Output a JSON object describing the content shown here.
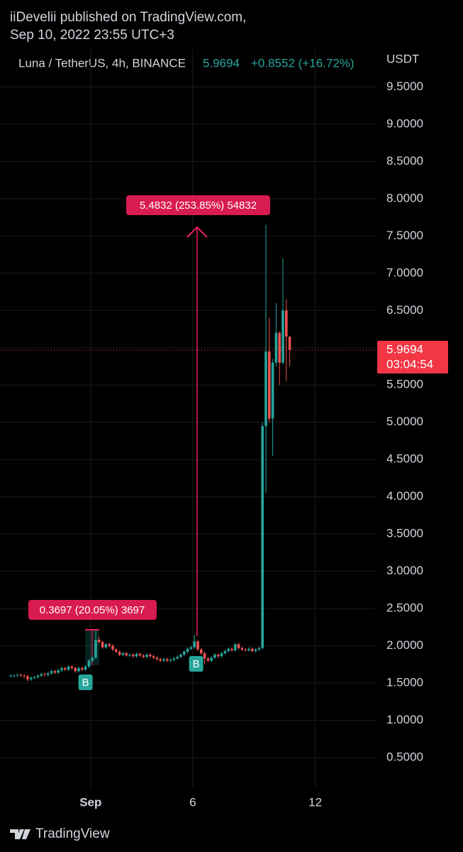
{
  "header": {
    "publisher": "iiDevelii published on TradingView.com,",
    "date": "Sep 10, 2022 23:55 UTC+3"
  },
  "footer": {
    "brand": "TradingView"
  },
  "chart_data": {
    "type": "candlestick",
    "title": "Luna / TetherUS, 4h, BINANCE",
    "change": "+0.8552 (+16.72%)",
    "currency": "USDT",
    "countdown": "03:04:54",
    "up_color": "#26a69a",
    "down_color": "#ef5350",
    "grid": true,
    "open": [
      1.6,
      1.6,
      1.6,
      1.61,
      1.6,
      1.59,
      1.55,
      1.57,
      1.58,
      1.6,
      1.62,
      1.61,
      1.63,
      1.66,
      1.64,
      1.67,
      1.7,
      1.68,
      1.72,
      1.7,
      1.66,
      1.7,
      1.68,
      1.72,
      1.8,
      1.84,
      2.08,
      2.05,
      1.98,
      2.02,
      2.0,
      1.95,
      1.92,
      1.88,
      1.9,
      1.87,
      1.88,
      1.86,
      1.89,
      1.87,
      1.85,
      1.88,
      1.86,
      1.84,
      1.82,
      1.8,
      1.82,
      1.8,
      1.81,
      1.83,
      1.85,
      1.88,
      1.92,
      1.96,
      1.98,
      2.06,
      1.95,
      1.9,
      1.83,
      1.8,
      1.84,
      1.88,
      1.86,
      1.9,
      1.93,
      1.96,
      1.94,
      2.02,
      1.97,
      1.95,
      1.94,
      1.96,
      1.93,
      1.95,
      1.97,
      4.95,
      5.95,
      5.05,
      5.8,
      6.2,
      5.8,
      6.5,
      6.15
    ],
    "high": [
      1.62,
      1.62,
      1.63,
      1.63,
      1.62,
      1.61,
      1.59,
      1.6,
      1.62,
      1.64,
      1.64,
      1.65,
      1.68,
      1.68,
      1.69,
      1.72,
      1.72,
      1.74,
      1.74,
      1.72,
      1.72,
      1.72,
      1.74,
      1.82,
      1.86,
      2.21,
      2.12,
      2.07,
      2.04,
      2.04,
      2.02,
      1.97,
      1.94,
      1.92,
      1.92,
      1.9,
      1.9,
      1.91,
      1.91,
      1.89,
      1.9,
      1.9,
      1.88,
      1.86,
      1.84,
      1.84,
      1.84,
      1.83,
      1.85,
      1.87,
      1.9,
      1.94,
      1.98,
      2.0,
      2.15,
      2.08,
      1.97,
      1.92,
      1.85,
      1.86,
      1.9,
      1.9,
      1.92,
      1.95,
      1.98,
      1.98,
      2.04,
      2.04,
      1.99,
      1.97,
      1.98,
      1.98,
      1.97,
      1.99,
      5.0,
      7.65,
      6.4,
      5.85,
      6.6,
      6.22,
      7.2,
      6.65,
      6.15
    ],
    "low": [
      1.58,
      1.58,
      1.58,
      1.58,
      1.57,
      1.52,
      1.53,
      1.55,
      1.56,
      1.58,
      1.59,
      1.59,
      1.61,
      1.62,
      1.62,
      1.65,
      1.66,
      1.66,
      1.68,
      1.64,
      1.64,
      1.66,
      1.66,
      1.7,
      1.78,
      1.82,
      2.03,
      1.96,
      1.96,
      1.98,
      1.93,
      1.9,
      1.86,
      1.86,
      1.85,
      1.85,
      1.84,
      1.84,
      1.85,
      1.83,
      1.83,
      1.84,
      1.82,
      1.8,
      1.78,
      1.78,
      1.78,
      1.78,
      1.79,
      1.81,
      1.83,
      1.86,
      1.9,
      1.94,
      1.96,
      1.93,
      1.88,
      1.75,
      1.78,
      1.78,
      1.82,
      1.84,
      1.84,
      1.88,
      1.91,
      1.92,
      1.92,
      1.95,
      1.93,
      1.92,
      1.92,
      1.91,
      1.91,
      1.93,
      1.95,
      4.05,
      5.0,
      4.55,
      5.75,
      5.5,
      5.78,
      5.55,
      5.75
    ],
    "close": [
      1.6,
      1.6,
      1.61,
      1.6,
      1.59,
      1.55,
      1.57,
      1.58,
      1.6,
      1.62,
      1.61,
      1.63,
      1.66,
      1.64,
      1.67,
      1.7,
      1.68,
      1.72,
      1.7,
      1.66,
      1.7,
      1.68,
      1.72,
      1.8,
      1.84,
      2.08,
      2.05,
      1.98,
      2.02,
      2.0,
      1.95,
      1.92,
      1.88,
      1.9,
      1.87,
      1.88,
      1.86,
      1.89,
      1.87,
      1.85,
      1.88,
      1.86,
      1.84,
      1.82,
      1.8,
      1.82,
      1.8,
      1.81,
      1.83,
      1.85,
      1.88,
      1.92,
      1.96,
      1.98,
      2.06,
      1.95,
      1.9,
      1.83,
      1.8,
      1.84,
      1.88,
      1.86,
      1.9,
      1.93,
      1.96,
      1.94,
      2.02,
      1.97,
      1.95,
      1.94,
      1.96,
      1.93,
      1.95,
      1.97,
      4.95,
      5.95,
      5.05,
      5.8,
      6.2,
      5.8,
      6.5,
      6.15,
      5.9694
    ],
    "xlim": [
      -3.125,
      107.29
    ],
    "xticks": [
      {
        "value": 23.5,
        "label": "Sep"
      },
      {
        "value": 53.5,
        "label": "6"
      },
      {
        "value": 89.5,
        "label": "12"
      }
    ],
    "ylim": [
      0.09,
      10.0
    ],
    "yticks": [
      {
        "value": 0.5,
        "label": "0.5000"
      },
      {
        "value": 1,
        "label": "1.0000"
      },
      {
        "value": 1.5,
        "label": "1.5000"
      },
      {
        "value": 2,
        "label": "2.0000"
      },
      {
        "value": 2.5,
        "label": "2.5000"
      },
      {
        "value": 3,
        "label": "3.0000"
      },
      {
        "value": 3.5,
        "label": "3.5000"
      },
      {
        "value": 4,
        "label": "4.0000"
      },
      {
        "value": 4.5,
        "label": "4.5000"
      },
      {
        "value": 5,
        "label": "5.0000"
      },
      {
        "value": 5.5,
        "label": "5.5000"
      },
      {
        "value": 6,
        "label": "6.0000"
      },
      {
        "value": 6.5,
        "label": "6.5000"
      },
      {
        "value": 7,
        "label": "7.0000"
      },
      {
        "value": 7.5,
        "label": "7.5000"
      },
      {
        "value": 8,
        "label": "8.0000"
      },
      {
        "value": 8.5,
        "label": "8.5000"
      },
      {
        "value": 9,
        "label": "9.0000"
      },
      {
        "value": 9.5,
        "label": "9.5000"
      }
    ],
    "markers": [
      {
        "index": 22,
        "label": "B"
      },
      {
        "index": 54.5,
        "label": "B"
      }
    ],
    "annotations": [
      "0.3697 (20.05%) 3697",
      "5.4832 (253.85%) 54832"
    ]
  }
}
